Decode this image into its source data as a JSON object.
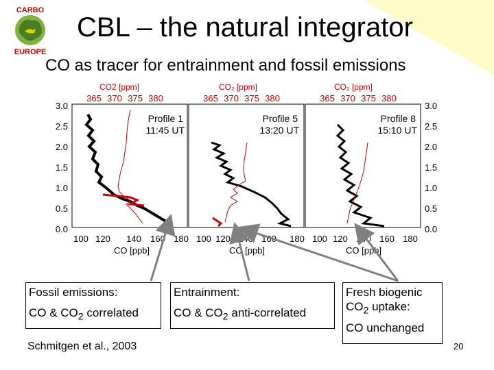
{
  "slide": {
    "title": "CBL – the natural integrator",
    "subtitle": "CO as tracer for entrainment and fossil emissions",
    "logo_text": [
      "CARBO",
      "EUROPE"
    ],
    "citation": "Schmitgen et al., 2003",
    "page_number": "20",
    "accent_color": "#cc0000"
  },
  "figure": {
    "top_axis_label_1": "CO2 [ppm]",
    "top_axis_label_2": "CO₂ [ppm]",
    "top_axis_label_3": "CO₂ [ppm]",
    "top_ticks": [
      "365",
      "370",
      "375",
      "380"
    ],
    "bottom_axis_label": "CO [ppb]",
    "bottom_ticks_1": [
      "100",
      "120",
      "140",
      "160",
      "180"
    ],
    "bottom_ticks_2": [
      "100",
      "120",
      "140",
      "160",
      "180"
    ],
    "bottom_ticks_3": [
      "100",
      "120",
      "140",
      "160",
      "180"
    ],
    "y_ticks": [
      "3.0",
      "2.5",
      "2.0",
      "1.5",
      "1.0",
      "0.5",
      "0.0"
    ],
    "panels": [
      {
        "profile": "Profile 1",
        "time": "11:45 UT"
      },
      {
        "profile": "Profile 5",
        "time": "13:20 UT"
      },
      {
        "profile": "Profile 8",
        "time": "15:10 UT"
      }
    ]
  },
  "annotations": [
    {
      "line1": "Fossil emissions:",
      "line2_prefix": "CO & CO",
      "line2_sub": "2",
      "line2_suffix": " correlated"
    },
    {
      "line1": "Entrainment:",
      "line2_prefix": "CO & CO",
      "line2_sub": "2",
      "line2_suffix": " anti-correlated"
    },
    {
      "line1": "Fresh biogenic",
      "line2_prefix": "CO",
      "line2_sub": "2",
      "line2_suffix": " uptake:",
      "line3": "CO unchanged"
    }
  ]
}
